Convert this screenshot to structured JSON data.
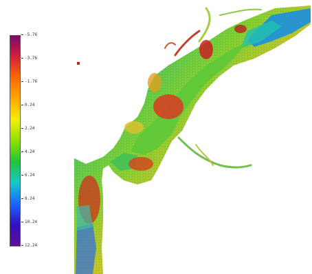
{
  "legend": {
    "ticks": [
      "-5.76",
      "-3.76",
      "-1.76",
      "0.24",
      "2.24",
      "4.24",
      "6.24",
      "8.24",
      "10.24",
      "12.24"
    ],
    "min": -5.76,
    "max": 12.24
  },
  "colors": {
    "ramp": [
      "#7a0a6a",
      "#d3203a",
      "#ff6a00",
      "#ffa800",
      "#f2f000",
      "#8fe000",
      "#22c43a",
      "#18c8c8",
      "#1a66ff",
      "#3010c0",
      "#601090"
    ]
  },
  "map": {
    "terrain": "river channel bathymetry"
  }
}
